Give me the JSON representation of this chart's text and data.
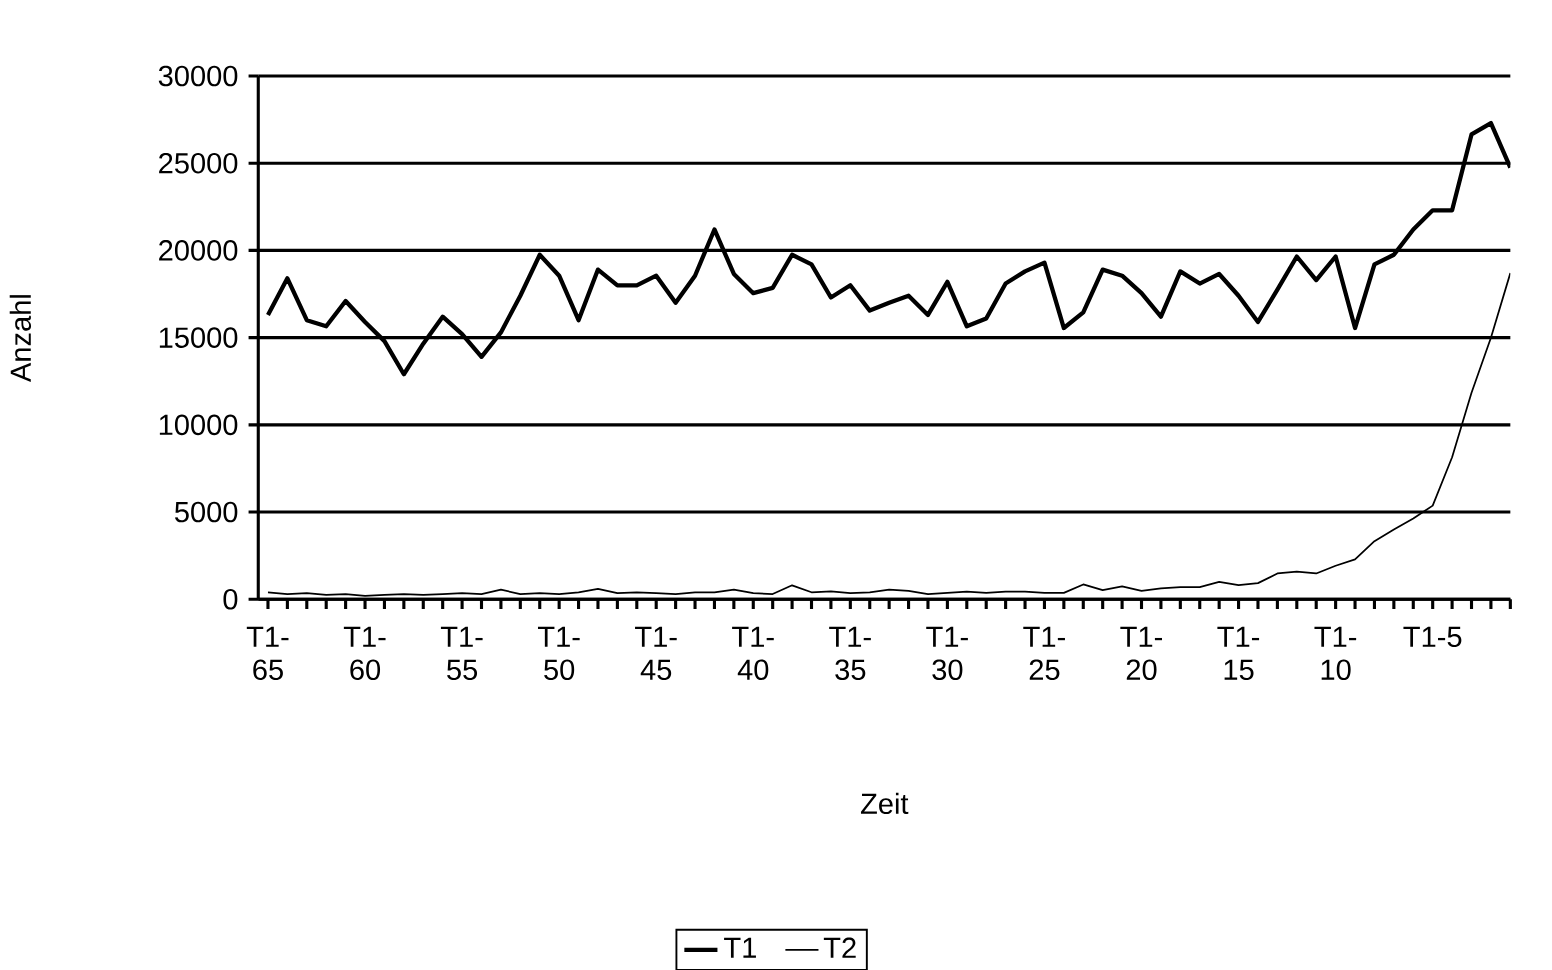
{
  "chart_data": {
    "type": "line",
    "xlabel": "Zeit",
    "ylabel": "Anzahl",
    "categories": [
      "T1-65",
      null,
      null,
      null,
      null,
      "T1-60",
      null,
      null,
      null,
      null,
      "T1-55",
      null,
      null,
      null,
      null,
      "T1-50",
      null,
      null,
      null,
      null,
      "T1-45",
      null,
      null,
      null,
      null,
      "T1-40",
      null,
      null,
      null,
      null,
      "T1-35",
      null,
      null,
      null,
      null,
      "T1-30",
      null,
      null,
      null,
      null,
      "T1-25",
      null,
      null,
      null,
      null,
      "T1-20",
      null,
      null,
      null,
      null,
      "T1-15",
      null,
      null,
      null,
      null,
      "T1-10",
      null,
      null,
      null,
      null,
      "T1-5",
      null,
      null,
      null,
      null
    ],
    "series": [
      {
        "name": "T1",
        "color": "#000000",
        "values": [
          16300,
          18400,
          16000,
          15650,
          17100,
          15900,
          14800,
          12900,
          14650,
          16200,
          15200,
          13900,
          15300,
          17400,
          19750,
          18550,
          16000,
          18900,
          18000,
          18000,
          18550,
          17000,
          18550,
          21200,
          18650,
          17550,
          17850,
          19750,
          19200,
          17300,
          18000,
          16550,
          17000,
          17400,
          16300,
          18200,
          15650,
          16100,
          18100,
          18800,
          19300,
          15550,
          16450,
          18900,
          18550,
          17550,
          16200,
          18800,
          18100,
          18650,
          17400,
          15900,
          17750,
          19650,
          18300,
          19650,
          15550,
          19200,
          19750,
          21200,
          22300,
          22300,
          26650,
          27300,
          24750
        ]
      },
      {
        "name": "T2",
        "color": "#000000",
        "values": [
          400,
          300,
          350,
          250,
          300,
          200,
          250,
          300,
          250,
          300,
          350,
          300,
          550,
          300,
          350,
          300,
          400,
          600,
          350,
          400,
          350,
          300,
          400,
          400,
          550,
          350,
          300,
          800,
          400,
          450,
          350,
          400,
          550,
          480,
          300,
          370,
          440,
          370,
          440,
          440,
          370,
          370,
          850,
          520,
          740,
          480,
          630,
          700,
          700,
          1000,
          810,
          925,
          1480,
          1590,
          1480,
          1920,
          2290,
          3330,
          4000,
          4630,
          5370,
          8140,
          11840,
          14990,
          18700
        ]
      }
    ],
    "ylim": [
      0,
      30000
    ],
    "yticks": [
      0,
      5000,
      10000,
      15000,
      20000,
      25000,
      30000
    ],
    "grid": "y",
    "legend": "bottom",
    "line_style": "solid"
  }
}
